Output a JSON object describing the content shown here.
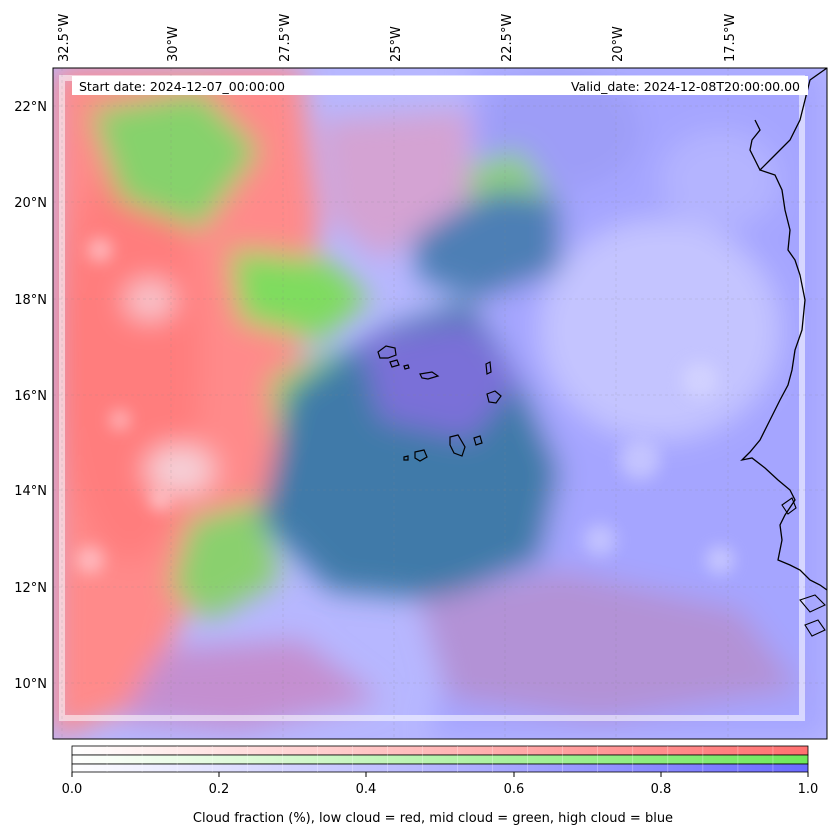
{
  "map": {
    "start_date_label": "Start date: 2024-12-07_00:00:00",
    "valid_date_label": "Valid_date: 2024-12-08T20:00:00.00",
    "lon_ticks": [
      "32.5°W",
      "30°W",
      "27.5°W",
      "25°W",
      "22.5°W",
      "20°W",
      "17.5°W"
    ],
    "lat_ticks": [
      "22°N",
      "20°N",
      "18°N",
      "16°N",
      "14°N",
      "12°N",
      "10°N"
    ],
    "colors": {
      "low_cloud": "#ff7f7f",
      "mid_cloud": "#7fdf5f",
      "high_cloud": "#7f7fff",
      "coastline": "#000000"
    }
  },
  "colorbar": {
    "ticks": [
      "0.0",
      "0.2",
      "0.4",
      "0.6",
      "0.8",
      "1.0"
    ],
    "label": "Cloud fraction (%), low cloud = red, mid cloud = green, high cloud = blue",
    "bands": [
      "low",
      "mid",
      "high"
    ]
  }
}
